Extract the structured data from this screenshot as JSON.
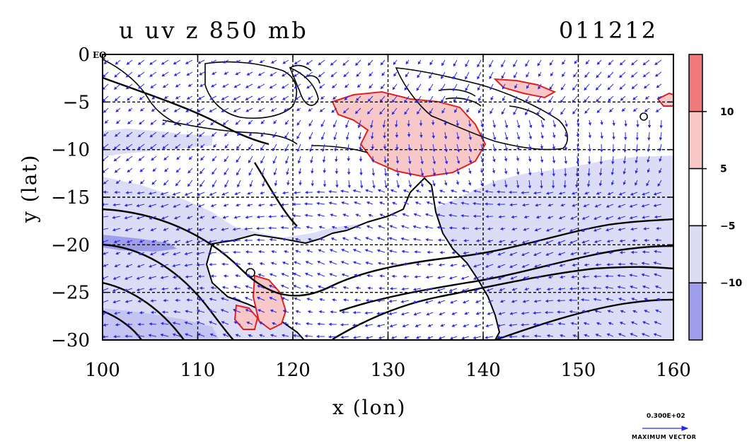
{
  "title": {
    "left": "u uv z 850 mb",
    "right": "011212"
  },
  "axes": {
    "x_label": "x (lon)",
    "y_label": "y (lat)",
    "x_ticks": [
      "100",
      "110",
      "120",
      "130",
      "140",
      "150",
      "160"
    ],
    "y_ticks": [
      "0",
      "−5",
      "−10",
      "−15",
      "−20",
      "−25",
      "−30"
    ],
    "x_range": [
      100,
      160
    ],
    "y_range": [
      -30,
      0
    ],
    "equator_label": "EQ",
    "grid": "dashed"
  },
  "colorbar": {
    "labels": [
      "10",
      "5",
      "−5",
      "−10"
    ],
    "bands": [
      {
        "color": "#f07a7a"
      },
      {
        "color": "#f8c8c8"
      },
      {
        "color": "#ffffff"
      },
      {
        "color": "#dcdcf6"
      },
      {
        "color": "#9e9eec"
      }
    ]
  },
  "vector_key": {
    "value": "0.300E+02",
    "label": "MAXIMUM VECTOR"
  },
  "colors": {
    "vectors": "#2a2ae6",
    "positive_contour": "#e02020",
    "land": "#000000"
  }
}
